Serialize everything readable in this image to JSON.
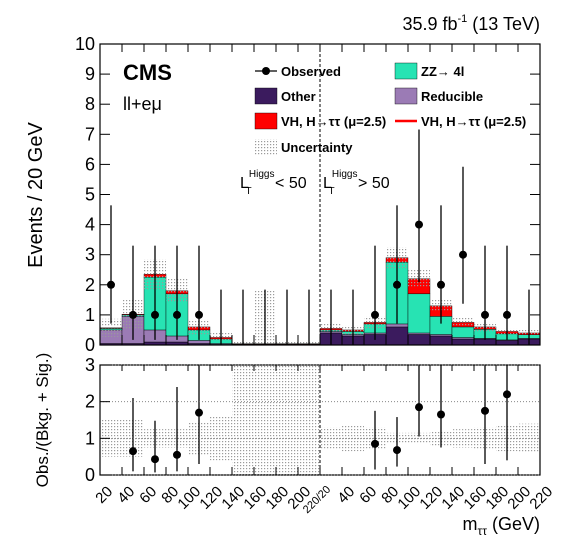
{
  "chart_data": {
    "type": "stacked-histogram",
    "lumi": {
      "text": "35.9 fb",
      "sup": "-1",
      "rest": " (13 TeV)"
    },
    "experiment": "CMS",
    "channel": "ll+eμ",
    "ylabel": "Events / 20 GeV",
    "ratio_ylabel": "Obs./(Bkg. + Sig.)",
    "xlabel": {
      "text": "m",
      "sub": "ττ",
      "rest": " (GeV)"
    },
    "regions": [
      {
        "text": "L",
        "sub": "T",
        "sup": "Higgs",
        "rest": " < 50"
      },
      {
        "text": "L",
        "sub": "T",
        "sup": "Higgs",
        "rest": " > 50"
      }
    ],
    "xtick_labels": [
      "20",
      "40",
      "60",
      "80",
      "100",
      "120",
      "140",
      "160",
      "180",
      "200",
      "220/20",
      "40",
      "60",
      "80",
      "100",
      "120",
      "140",
      "160",
      "180",
      "200",
      "220"
    ],
    "ylim": [
      0,
      10
    ],
    "yticks": [
      0,
      1,
      2,
      3,
      4,
      5,
      6,
      7,
      8,
      9,
      10
    ],
    "ratio_ylim": [
      0,
      3
    ],
    "ratio_yticks": [
      0,
      1,
      2,
      3
    ],
    "series": [
      {
        "name": "Other",
        "color": "#3b1b5e",
        "values": [
          0.05,
          0.05,
          0.1,
          0.1,
          0.05,
          0.02,
          0.01,
          0.01,
          0.01,
          0.01,
          0.4,
          0.3,
          0.35,
          0.6,
          0.35,
          0.3,
          0.2,
          0.2,
          0.15,
          0.2
        ]
      },
      {
        "name": "Reducible",
        "color": "#9b7bb5",
        "values": [
          0.45,
          0.9,
          0.4,
          0.2,
          0.1,
          0.03,
          0.01,
          0.01,
          0.01,
          0.01,
          0.05,
          0.05,
          0.05,
          0.1,
          0.05,
          0.05,
          0.05,
          0.02,
          0.02,
          0.02
        ]
      },
      {
        "name": "ZZ→ 4l",
        "color": "#27e3b3",
        "values": [
          0.05,
          0.05,
          1.75,
          1.4,
          0.35,
          0.15,
          0.01,
          0.01,
          0.01,
          0.01,
          0.05,
          0.1,
          0.3,
          2.05,
          1.3,
          0.6,
          0.35,
          0.3,
          0.2,
          0.12
        ]
      },
      {
        "name": "VH, H→ττ (μ=2.5)",
        "color": "#ff0000",
        "values": [
          0.02,
          0.02,
          0.1,
          0.1,
          0.1,
          0.05,
          0.01,
          0.01,
          0.01,
          0.01,
          0.05,
          0.05,
          0.05,
          0.15,
          0.5,
          0.35,
          0.15,
          0.08,
          0.08,
          0.06
        ]
      }
    ],
    "signal_line": {
      "name": "VH, H→ττ (μ=2.5)",
      "color": "#ff0000"
    },
    "uncertainty": {
      "name": "Uncertainty",
      "color": "#b0b0b0",
      "values": [
        0.3,
        0.5,
        0.5,
        0.4,
        0.25,
        0.15,
        0.1,
        1.8,
        0.1,
        0.1,
        0.15,
        0.15,
        0.2,
        0.35,
        0.3,
        0.2,
        0.15,
        0.15,
        0.1,
        0.1
      ]
    },
    "observed": {
      "name": "Observed",
      "color": "#000000",
      "values": [
        2,
        1,
        1,
        1,
        1,
        0,
        0,
        0,
        0,
        0,
        0,
        0,
        1,
        2,
        4,
        2,
        3,
        1,
        1,
        0
      ],
      "err_low": [
        1.29,
        0.83,
        0.83,
        0.83,
        0.83,
        0,
        0,
        0,
        0,
        0,
        0,
        0,
        0.83,
        1.29,
        1.91,
        1.29,
        1.63,
        0.83,
        0.83,
        0
      ],
      "err_high": [
        2.64,
        2.3,
        2.3,
        2.3,
        2.3,
        1.84,
        1.84,
        1.84,
        1.84,
        1.84,
        1.84,
        1.84,
        2.3,
        2.64,
        3.16,
        2.64,
        2.92,
        2.3,
        2.3,
        1.84
      ]
    },
    "ratio": {
      "values": [
        null,
        0.65,
        0.43,
        0.55,
        1.7,
        null,
        null,
        null,
        null,
        null,
        null,
        null,
        0.85,
        0.68,
        1.85,
        1.65,
        null,
        1.75,
        2.2,
        null
      ],
      "err_low": [
        null,
        0.55,
        0.36,
        0.45,
        1.4,
        null,
        null,
        null,
        null,
        null,
        null,
        null,
        0.7,
        0.45,
        0.8,
        0.9,
        null,
        1.45,
        1.8,
        null
      ],
      "err_high": [
        null,
        1.45,
        1.05,
        1.85,
        1.8,
        null,
        null,
        null,
        null,
        null,
        null,
        null,
        0.9,
        0.9,
        1.9,
        1.6,
        null,
        1.3,
        1.5,
        null
      ],
      "uncertainty": [
        0.5,
        0.5,
        0.25,
        0.25,
        0.45,
        0.6,
        3,
        3,
        3,
        3,
        0.3,
        0.35,
        0.3,
        0.15,
        0.15,
        0.2,
        0.25,
        0.3,
        0.35,
        0.4
      ]
    }
  }
}
